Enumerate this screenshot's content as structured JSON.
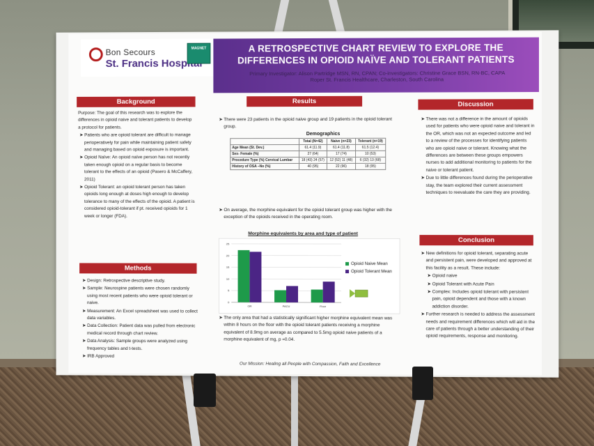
{
  "header": {
    "logo_line1": "Bon Secours",
    "logo_line2_a": "St. Francis Hospital",
    "magnet_text": "MAGNET",
    "title": "A RETROSPECTIVE CHART REVIEW TO EXPLORE THE DIFFERENCES IN OPIOID NAÏVE AND TOLERANT PATIENTS",
    "byline_1": "Primary Investigator: Alison Partridge MSN, RN, CPAN; Co-investigators: Christine Grace BSN, RN-BC, CAPA",
    "byline_2": "Roper St. Francis Healthcare, Charleston, South Carolina"
  },
  "background": {
    "heading": "Background",
    "purpose": "Purpose: The goal of this research was to explore the differences in opioid naive and tolerant patients to develop a protocol for patients.",
    "bullets": [
      "Patients who are opioid tolerant are difficult to manage perioperatively for pain while maintaining patient safety and managing based on opioid exposure is important.",
      "Opioid Naïve:  An opioid naïve person has not recently taken enough opioid on a regular basis to become tolerant to the effects of an opioid (Pasero & McCaffery, 2011)",
      "Opioid Tolerant:  an opioid tolerant person has taken opioids long enough at doses high enough to develop tolerance to many of the effects of the opioid. A patient is considered opioid-tolerant if pt. received opioids for 1 week or longer (FDA)."
    ]
  },
  "methods": {
    "heading": "Methods",
    "bullets": [
      "Design: Retrospective descriptive study.",
      "Sample: Neurospine patients were chosen randomly using most recent patients who were opioid tolerant or naive.",
      "Measurement: An Excel spreadsheet was used to collect data variables.",
      "Data Collection: Patient data was pulled from electronic medical record through chart review.",
      "Data Analysis: Sample groups were analyzed using frequency tables and t-tests.",
      "IRB Approved"
    ]
  },
  "results": {
    "heading": "Results",
    "intro": "There were 23 patients in the opioid naive group and 19 patients in the opioid tolerant group.",
    "demographics_title": "Demographics",
    "table": {
      "headers": [
        "",
        "Total (N=42)",
        "Naive (n=23)",
        "Tolerant (n=19)"
      ],
      "rows": [
        [
          "Age Mean (St. Dev.)",
          "61.4 (11.9)",
          "61.4 (11.8)",
          "61.5 (12.4)"
        ],
        [
          "Sex- Female (%)",
          "27 (64)",
          "17 (74)",
          "10 (53)"
        ],
        [
          "Procedure Type (%)  Cervical  Lumbar",
          "18 (43)  24 (57)",
          "12 (52)  11 (48)",
          "6 (32)  13 (68)"
        ],
        [
          "History of OSA –No (%)",
          "40 (95)",
          "22 (96)",
          "18 (95)"
        ]
      ]
    },
    "mid_text": "On average, the morphine equivalent for the opioid tolerant group was higher with the exception of the opioids received in the operating room.",
    "chart_title": "Morphine equivalents by area and type of patient",
    "closing_text": "The only area that had a statistically significant higher morphine equivalent mean was within 8 hours on the floor with the opioid tolerant patients receiving a morphine equivalent of 8.9mg on average as compared to 5.5mg opioid naive patients of a morphine equivalent of mg, p =0.04.",
    "mission": "Our Mission: Healing all People with Compassion, Faith and Excellence"
  },
  "chart_data": {
    "type": "bar",
    "title": "Morphine equivalents by area and type of patient",
    "categories": [
      "OR",
      "PACU",
      "Floor"
    ],
    "series": [
      {
        "name": "Opioid Naive Mean",
        "values": [
          22.3,
          5.2,
          5.5
        ],
        "color": "#1e9a4a"
      },
      {
        "name": "Opioid Tolerant Mean",
        "values": [
          21.6,
          7.0,
          8.9
        ],
        "color": "#4b2585"
      }
    ],
    "yticks": [
      "0",
      "5",
      "10",
      "15",
      "20",
      "25"
    ],
    "ylim": [
      0,
      25
    ],
    "grid": true,
    "legend": "right"
  },
  "discussion": {
    "heading": "Discussion",
    "bullets": [
      "There was not a difference in the amount of opioids used for patients who were opioid naive and tolerant in the OR, which was not an expected outcome and led to a review of the processes for identifying patients who are opioid naive or tolerant. Knowing what the differences are between these groups empowers nurses to add additional monitoring to patients for the naive or tolerant patient.",
      "Due to little differences found during the perioperative stay, the team explored their current assessment techniques to reevaluate the care they are providing."
    ]
  },
  "conclusion": {
    "heading": "Conclusion",
    "bullets": [
      "New definitions for opioid tolerant, separating acute and persistent pain, were developed and approved at this facility as a result.  These include:"
    ],
    "sub_bullets": [
      "Opioid naive",
      "Opioid Tolerant with Acute Pain",
      "Complex: Includes opioid tolerant with persistent pain, opioid dependent and those with a known addiction disorder."
    ],
    "bullets_after": [
      "Further research is needed to address the assessment needs and requirement differences which will aid in the care of patients through a better understanding of their opioid requirements, response and monitoring."
    ]
  },
  "colors": {
    "section_red": "#b3262a",
    "banner_purple": "#5b2f8c",
    "naive_green": "#1e9a4a",
    "tolerant_purple": "#4b2585"
  }
}
